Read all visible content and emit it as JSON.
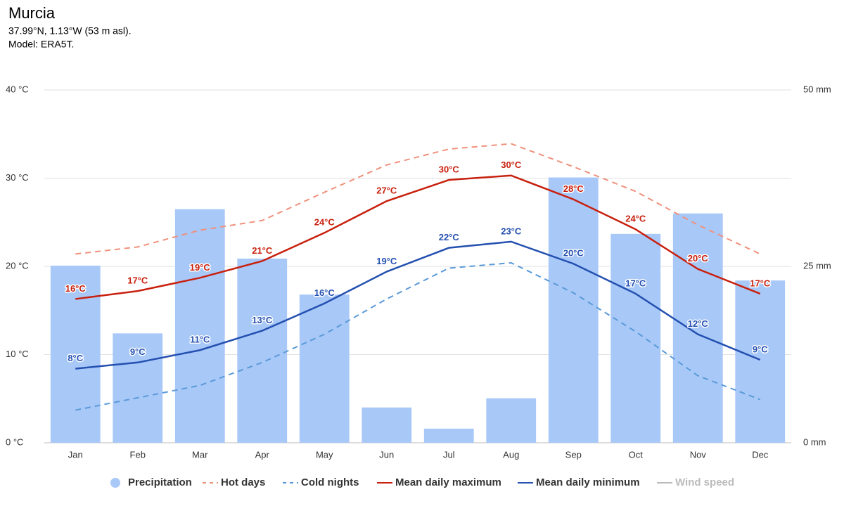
{
  "chart_data": {
    "type": "combo",
    "title": "Murcia",
    "subtitle": [
      "37.99°N, 1.13°W (53 m asl).",
      "Model: ERA5T."
    ],
    "categories": [
      "Jan",
      "Feb",
      "Mar",
      "Apr",
      "May",
      "Jun",
      "Jul",
      "Aug",
      "Sep",
      "Oct",
      "Nov",
      "Dec"
    ],
    "ylim": [
      0,
      40
    ],
    "yticks": [
      {
        "value": 0,
        "label": "0 °C"
      },
      {
        "value": 10,
        "label": "10 °C"
      },
      {
        "value": 20,
        "label": "20 °C"
      },
      {
        "value": 30,
        "label": "30 °C"
      },
      {
        "value": 40,
        "label": "40 °C"
      }
    ],
    "y2lim": [
      0,
      50
    ],
    "y2ticks": [
      {
        "value": 0,
        "label": "0 mm"
      },
      {
        "value": 25,
        "label": "25 mm"
      },
      {
        "value": 50,
        "label": "50 mm"
      }
    ],
    "grid": true,
    "legend": "bottom",
    "series": [
      {
        "name": "Precipitation",
        "type": "bar",
        "axis": "y2",
        "color": "#a8c8f8",
        "values": [
          25.1,
          15.5,
          33.1,
          26.1,
          21.0,
          5.0,
          2.0,
          6.3,
          37.6,
          29.6,
          32.5,
          23.0
        ]
      },
      {
        "name": "Hot days",
        "type": "line",
        "dashed": true,
        "color": "#f0917c",
        "values": [
          21.4,
          22.2,
          24.1,
          25.2,
          28.4,
          31.5,
          33.3,
          33.9,
          31.3,
          28.5,
          24.7,
          21.4
        ]
      },
      {
        "name": "Cold nights",
        "type": "line",
        "dashed": true,
        "color": "#5a9ad8",
        "values": [
          3.7,
          5.1,
          6.5,
          9.1,
          12.3,
          16.3,
          19.8,
          20.4,
          17.0,
          12.6,
          7.6,
          4.9
        ]
      },
      {
        "name": "Mean daily maximum",
        "type": "line",
        "color": "#c8200e",
        "values": [
          16.3,
          17.2,
          18.7,
          20.6,
          23.8,
          27.4,
          29.8,
          30.3,
          27.6,
          24.2,
          19.7,
          16.9
        ],
        "value_labels": [
          "16°C",
          "17°C",
          "19°C",
          "21°C",
          "24°C",
          "27°C",
          "30°C",
          "30°C",
          "28°C",
          "24°C",
          "20°C",
          "17°C"
        ]
      },
      {
        "name": "Mean daily minimum",
        "type": "line",
        "color": "#2450b0",
        "values": [
          8.4,
          9.1,
          10.5,
          12.7,
          15.8,
          19.4,
          22.1,
          22.8,
          20.3,
          16.9,
          12.3,
          9.4
        ],
        "value_labels": [
          "8°C",
          "9°C",
          "11°C",
          "13°C",
          "16°C",
          "19°C",
          "22°C",
          "23°C",
          "20°C",
          "17°C",
          "12°C",
          "9°C"
        ]
      },
      {
        "name": "Wind speed",
        "type": "line",
        "visible": false,
        "color": "#999999"
      }
    ]
  }
}
